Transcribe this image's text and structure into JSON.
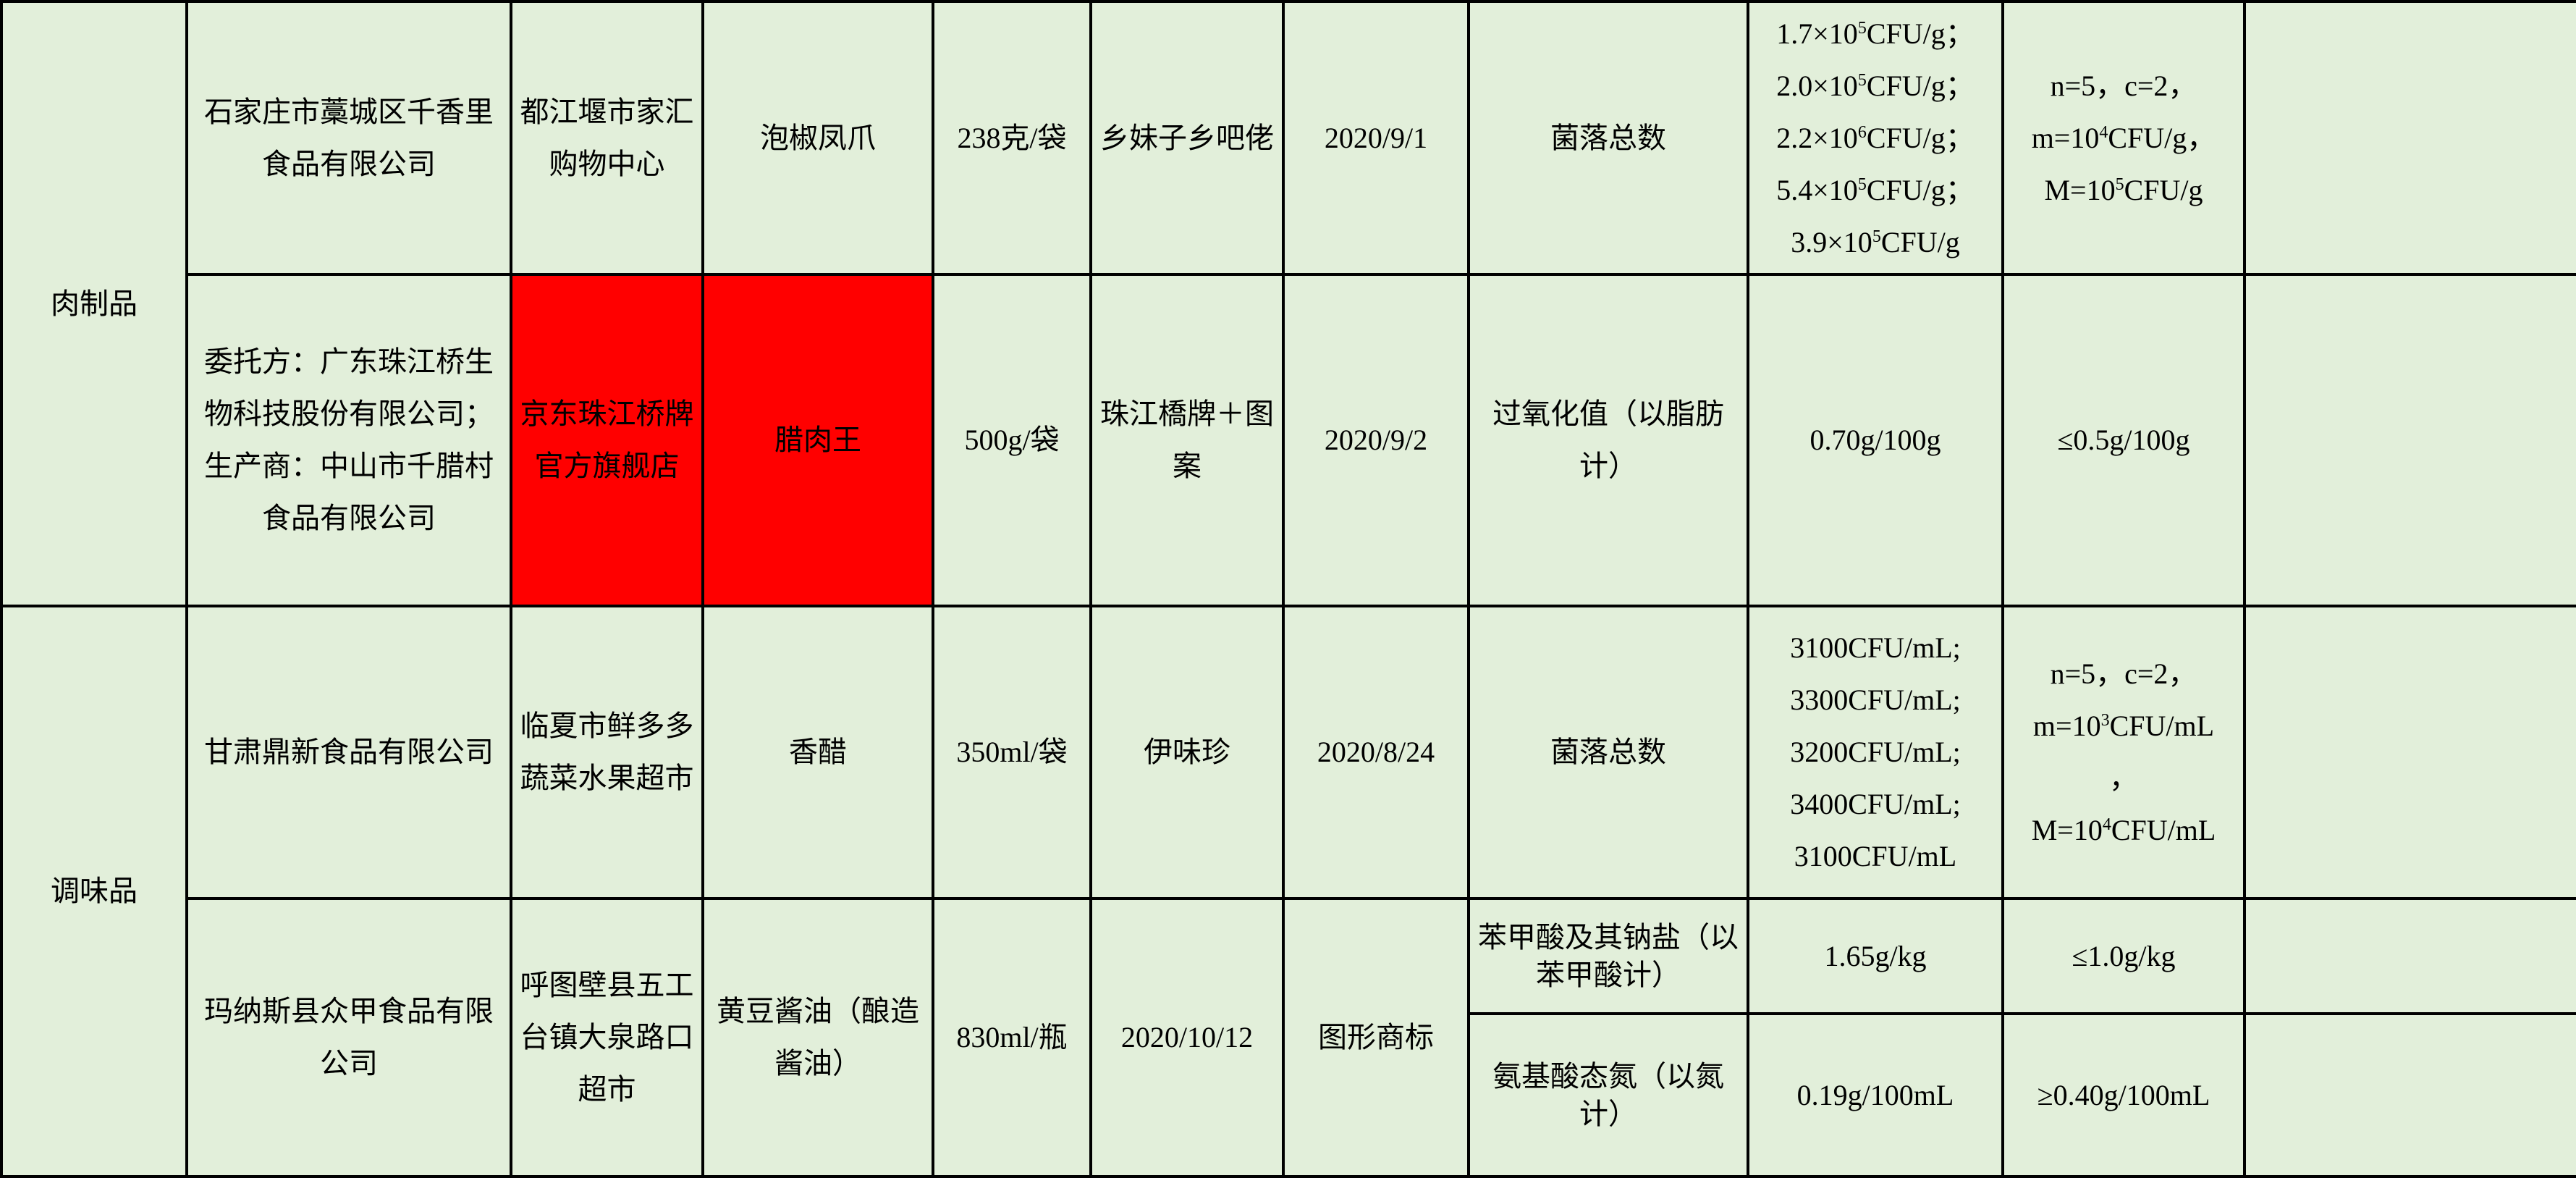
{
  "colors": {
    "background": "#e2efda",
    "highlight": "#ff0000",
    "border": "#000000"
  },
  "categories": [
    "肉制品",
    "调味品"
  ],
  "rows": [
    {
      "producer": "石家庄市藁城区千香里食品有限公司",
      "seller": "都江堰市家汇购物中心",
      "product": "泡椒凤爪",
      "spec": "238克/袋",
      "brand": "乡妹子乡吧佬",
      "date": "2020/9/1",
      "item": "菌落总数",
      "result": [
        {
          "pre": "1.7×10",
          "sup": "5",
          "post": "CFU/g；"
        },
        {
          "pre": "2.0×10",
          "sup": "5",
          "post": "CFU/g；"
        },
        {
          "pre": "2.2×10",
          "sup": "6",
          "post": "CFU/g；"
        },
        {
          "pre": "5.4×10",
          "sup": "5",
          "post": "CFU/g；"
        },
        {
          "pre": "3.9×10",
          "sup": "5",
          "post": "CFU/g"
        }
      ],
      "standard": [
        {
          "pre": "n=5，c=2，",
          "sup": "",
          "post": ""
        },
        {
          "pre": "m=10",
          "sup": "4",
          "post": "CFU/g，"
        },
        {
          "pre": "M=10",
          "sup": "5",
          "post": "CFU/g"
        }
      ],
      "note": ""
    },
    {
      "producer": "委托方：广东珠江桥生物科技股份有限公司；生产商：中山市千腊村食品有限公司",
      "seller": "京东珠江桥牌官方旗舰店",
      "product": "腊肉王",
      "spec": "500g/袋",
      "brand": "珠江橋牌＋图案",
      "date": "2020/9/2",
      "item": "过氧化值（以脂肪计）",
      "result_text": "0.70g/100g",
      "standard_text": "≤0.5g/100g",
      "note": ""
    },
    {
      "producer": "甘肃鼎新食品有限公司",
      "seller": "临夏市鲜多多蔬菜水果超市",
      "product": "香醋",
      "spec": "350ml/袋",
      "brand": "伊味珍",
      "date": "2020/8/24",
      "item": "菌落总数",
      "result": [
        {
          "pre": "3100CFU/mL;",
          "sup": "",
          "post": ""
        },
        {
          "pre": "3300CFU/mL;",
          "sup": "",
          "post": ""
        },
        {
          "pre": "3200CFU/mL;",
          "sup": "",
          "post": ""
        },
        {
          "pre": "3400CFU/mL;",
          "sup": "",
          "post": ""
        },
        {
          "pre": "3100CFU/mL",
          "sup": "",
          "post": ""
        }
      ],
      "standard": [
        {
          "pre": "n=5，c=2，",
          "sup": "",
          "post": ""
        },
        {
          "pre": "m=10",
          "sup": "3",
          "post": "CFU/mL"
        },
        {
          "pre": "，",
          "sup": "",
          "post": ""
        },
        {
          "pre": "M=10",
          "sup": "4",
          "post": "CFU/mL"
        }
      ],
      "note": ""
    },
    {
      "producer": "玛纳斯县众甲食品有限公司",
      "seller": "呼图壁县五工台镇大泉路口超市",
      "product": "黄豆酱油（酿造酱油）",
      "spec": "830ml/瓶",
      "brand": "图形商标",
      "date": "2020/10/12",
      "tests": [
        {
          "item": "苯甲酸及其钠盐（以苯甲酸计）",
          "result": "1.65g/kg",
          "standard": "≤1.0g/kg",
          "note": ""
        },
        {
          "item": "氨基酸态氮（以氮计）",
          "result": "0.19g/100mL",
          "standard": "≥0.40g/100mL",
          "note": ""
        }
      ]
    }
  ]
}
